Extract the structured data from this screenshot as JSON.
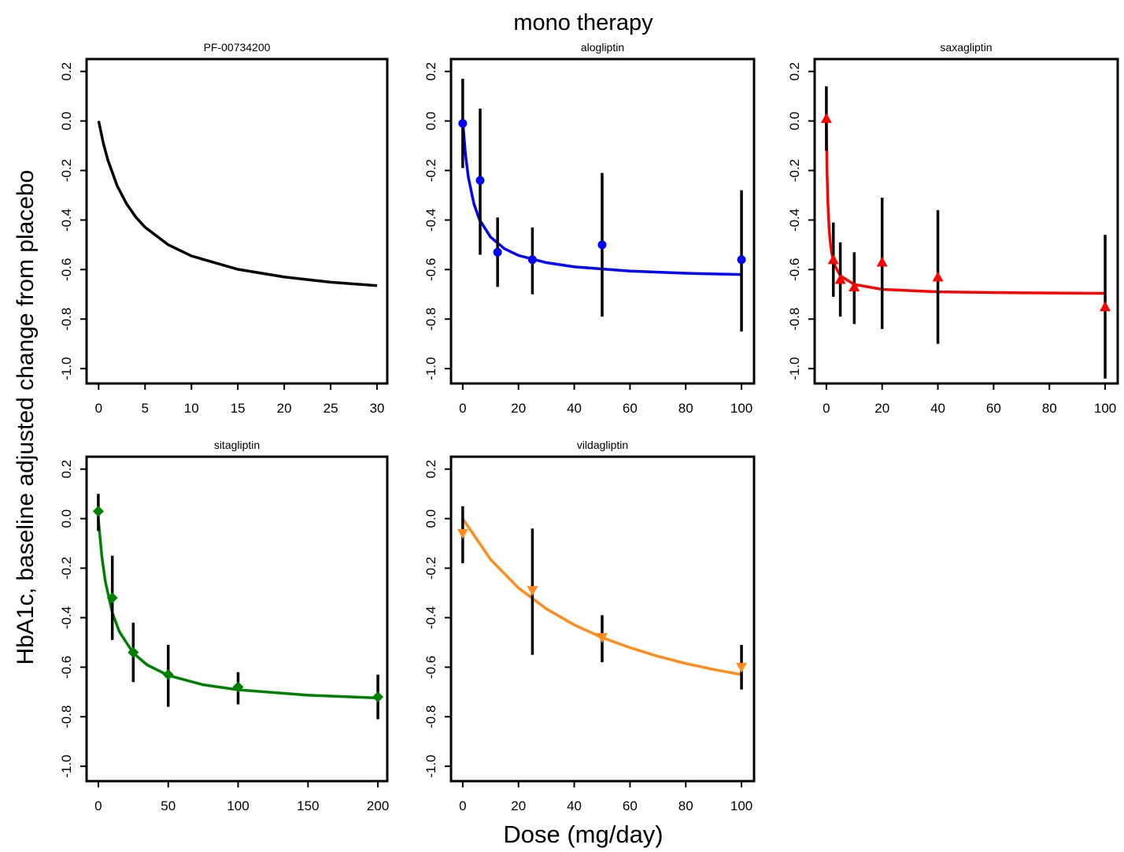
{
  "figure": {
    "title": "mono therapy",
    "xlabel": "Dose (mg/day)",
    "ylabel": "HbA1c, baseline adjusted change from placebo"
  },
  "chart_data": [
    {
      "type": "line",
      "title": "PF-00734200",
      "xlim": [
        -1.3,
        31.1
      ],
      "ylim": [
        -1.06,
        0.25
      ],
      "xticks": [
        0,
        5,
        10,
        15,
        20,
        25,
        30
      ],
      "yticks": [
        0.2,
        {
          "value": 0,
          "label": "0.0"
        },
        -0.2,
        -0.4,
        -0.6,
        -0.8,
        {
          "value": -1,
          "label": "-1.0"
        }
      ],
      "curve": {
        "color": "#000000",
        "x": [
          0,
          0.5,
          1,
          2,
          3,
          4,
          5,
          7.5,
          10,
          15,
          20,
          25,
          30
        ],
        "values": [
          0,
          -0.089,
          -0.159,
          -0.262,
          -0.334,
          -0.388,
          -0.429,
          -0.5,
          -0.545,
          -0.599,
          -0.63,
          -0.651,
          -0.665
        ]
      }
    },
    {
      "type": "line",
      "title": "alogliptin",
      "xlim": [
        -4.2,
        104.5
      ],
      "ylim": [
        -1.06,
        0.25
      ],
      "xticks": [
        0,
        20,
        40,
        60,
        80,
        100
      ],
      "yticks": [
        0.2,
        {
          "value": 0,
          "label": "0.0"
        },
        -0.2,
        -0.4,
        -0.6,
        -0.8,
        {
          "value": -1,
          "label": "-1.0"
        }
      ],
      "curve": {
        "color": "#0000ff",
        "x": [
          0,
          1,
          2,
          4,
          6,
          10,
          15,
          20,
          30,
          40,
          60,
          80,
          100
        ],
        "values": [
          0,
          -0.137,
          -0.226,
          -0.334,
          -0.398,
          -0.469,
          -0.516,
          -0.543,
          -0.572,
          -0.589,
          -0.606,
          -0.615,
          -0.62
        ]
      },
      "points": {
        "color": "#0000ff",
        "marker": "circle",
        "x": [
          0,
          6.25,
          12.5,
          25,
          50,
          100
        ],
        "values": [
          -0.01,
          -0.24,
          -0.53,
          -0.56,
          -0.5,
          -0.56
        ],
        "ci_low": [
          -0.19,
          -0.54,
          -0.67,
          -0.7,
          -0.79,
          -0.85
        ],
        "ci_high": [
          0.17,
          0.05,
          -0.39,
          -0.43,
          -0.21,
          -0.28
        ]
      }
    },
    {
      "type": "line",
      "title": "saxagliptin",
      "xlim": [
        -4.2,
        104.5
      ],
      "ylim": [
        -1.06,
        0.25
      ],
      "xticks": [
        0,
        20,
        40,
        60,
        80,
        100
      ],
      "yticks": [
        0.2,
        {
          "value": 0,
          "label": "0.0"
        },
        -0.2,
        -0.4,
        -0.6,
        -0.8,
        {
          "value": -1,
          "label": "-1.0"
        }
      ],
      "curve": {
        "color": "#ff0000",
        "x": [
          0,
          0.25,
          0.5,
          1,
          1.5,
          2,
          3,
          5,
          10,
          20,
          40,
          70,
          100
        ],
        "values": [
          0,
          -0.206,
          -0.318,
          -0.438,
          -0.5,
          -0.538,
          -0.583,
          -0.625,
          -0.66,
          -0.68,
          -0.69,
          -0.694,
          -0.696
        ]
      },
      "points": {
        "color": "#ff0000",
        "marker": "triangle-up",
        "x": [
          0,
          2.5,
          5,
          10,
          20,
          40,
          100
        ],
        "values": [
          0.01,
          -0.56,
          -0.64,
          -0.67,
          -0.57,
          -0.63,
          -0.75
        ],
        "ci_low": [
          -0.12,
          -0.71,
          -0.79,
          -0.82,
          -0.84,
          -0.9,
          -1.04
        ],
        "ci_high": [
          0.14,
          -0.41,
          -0.49,
          -0.53,
          -0.31,
          -0.36,
          -0.46
        ]
      }
    },
    {
      "type": "line",
      "title": "sitagliptin",
      "xlim": [
        -8.4,
        206.7
      ],
      "ylim": [
        -1.06,
        0.25
      ],
      "xticks": [
        0,
        50,
        100,
        150,
        200
      ],
      "yticks": [
        0.2,
        {
          "value": 0,
          "label": "0.0"
        },
        -0.2,
        -0.4,
        -0.6,
        -0.8,
        {
          "value": -1,
          "label": "-1.0"
        }
      ],
      "curve": {
        "color": "#008000",
        "x": [
          0,
          2.5,
          5,
          10,
          15,
          25,
          35,
          50,
          75,
          100,
          150,
          200
        ],
        "values": [
          0,
          -0.152,
          -0.253,
          -0.38,
          -0.456,
          -0.543,
          -0.591,
          -0.633,
          -0.671,
          -0.691,
          -0.713,
          -0.724
        ]
      },
      "points": {
        "color": "#008000",
        "marker": "diamond",
        "x": [
          0,
          10,
          25,
          50,
          100,
          200
        ],
        "values": [
          0.03,
          -0.32,
          -0.54,
          -0.63,
          -0.68,
          -0.72
        ],
        "ci_low": [
          -0.05,
          -0.49,
          -0.66,
          -0.76,
          -0.75,
          -0.81
        ],
        "ci_high": [
          0.1,
          -0.15,
          -0.42,
          -0.51,
          -0.62,
          -0.63
        ]
      }
    },
    {
      "type": "line",
      "title": "vildagliptin",
      "xlim": [
        -4.2,
        104.5
      ],
      "ylim": [
        -1.06,
        0.25
      ],
      "xticks": [
        0,
        20,
        40,
        60,
        80,
        100
      ],
      "yticks": [
        0.2,
        {
          "value": 0,
          "label": "0.0"
        },
        -0.2,
        -0.4,
        -0.6,
        -0.8,
        {
          "value": -1,
          "label": "-1.0"
        }
      ],
      "curve": {
        "color": "#ff8c1a",
        "x": [
          0,
          10,
          20,
          30,
          40,
          50,
          60,
          70,
          80,
          90,
          100
        ],
        "values": [
          0,
          -0.165,
          -0.28,
          -0.364,
          -0.429,
          -0.48,
          -0.521,
          -0.556,
          -0.585,
          -0.609,
          -0.63
        ]
      },
      "points": {
        "color": "#ff8c1a",
        "marker": "triangle-down",
        "x": [
          0,
          25,
          50,
          100
        ],
        "values": [
          -0.06,
          -0.29,
          -0.48,
          -0.6
        ],
        "ci_low": [
          -0.18,
          -0.55,
          -0.58,
          -0.69
        ],
        "ci_high": [
          0.05,
          -0.04,
          -0.39,
          -0.51
        ]
      }
    }
  ]
}
